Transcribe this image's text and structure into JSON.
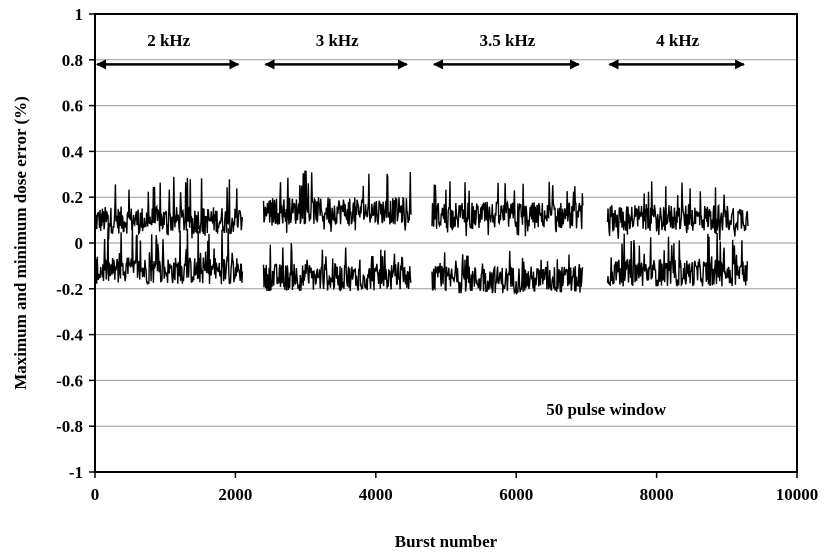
{
  "chart_data": {
    "type": "line",
    "title": "",
    "xlabel": "Burst number",
    "ylabel": "Maximum and minimum dose error (%)",
    "xlim": [
      0,
      10000
    ],
    "ylim": [
      -1,
      1
    ],
    "x_ticks": [
      "0",
      "2000",
      "4000",
      "6000",
      "8000",
      "10000"
    ],
    "y_ticks": [
      "1",
      "0.8",
      "0.6",
      "0.4",
      "0.2",
      "0",
      "-0.2",
      "-0.4",
      "-0.6",
      "-0.8",
      "-1"
    ],
    "grid": true,
    "legend": "none",
    "annotation": "50 pulse window",
    "segments": [
      {
        "label": "2 kHz",
        "x_range": [
          0,
          2100
        ],
        "max_mean": 0.1,
        "max_peak": 0.29,
        "min_mean": -0.12,
        "min_peak": -0.31
      },
      {
        "label": "3 kHz",
        "x_range": [
          2400,
          4500
        ],
        "max_mean": 0.14,
        "max_peak": 0.32,
        "min_mean": -0.15,
        "min_peak": -0.3
      },
      {
        "label": "3.5 kHz",
        "x_range": [
          4800,
          6950
        ],
        "max_mean": 0.12,
        "max_peak": 0.27,
        "min_mean": -0.16,
        "min_peak": -0.29
      },
      {
        "label": "4 kHz",
        "x_range": [
          7300,
          9300
        ],
        "max_mean": 0.11,
        "max_peak": 0.27,
        "min_mean": -0.13,
        "min_peak": -0.31
      }
    ],
    "color": "#000000"
  }
}
